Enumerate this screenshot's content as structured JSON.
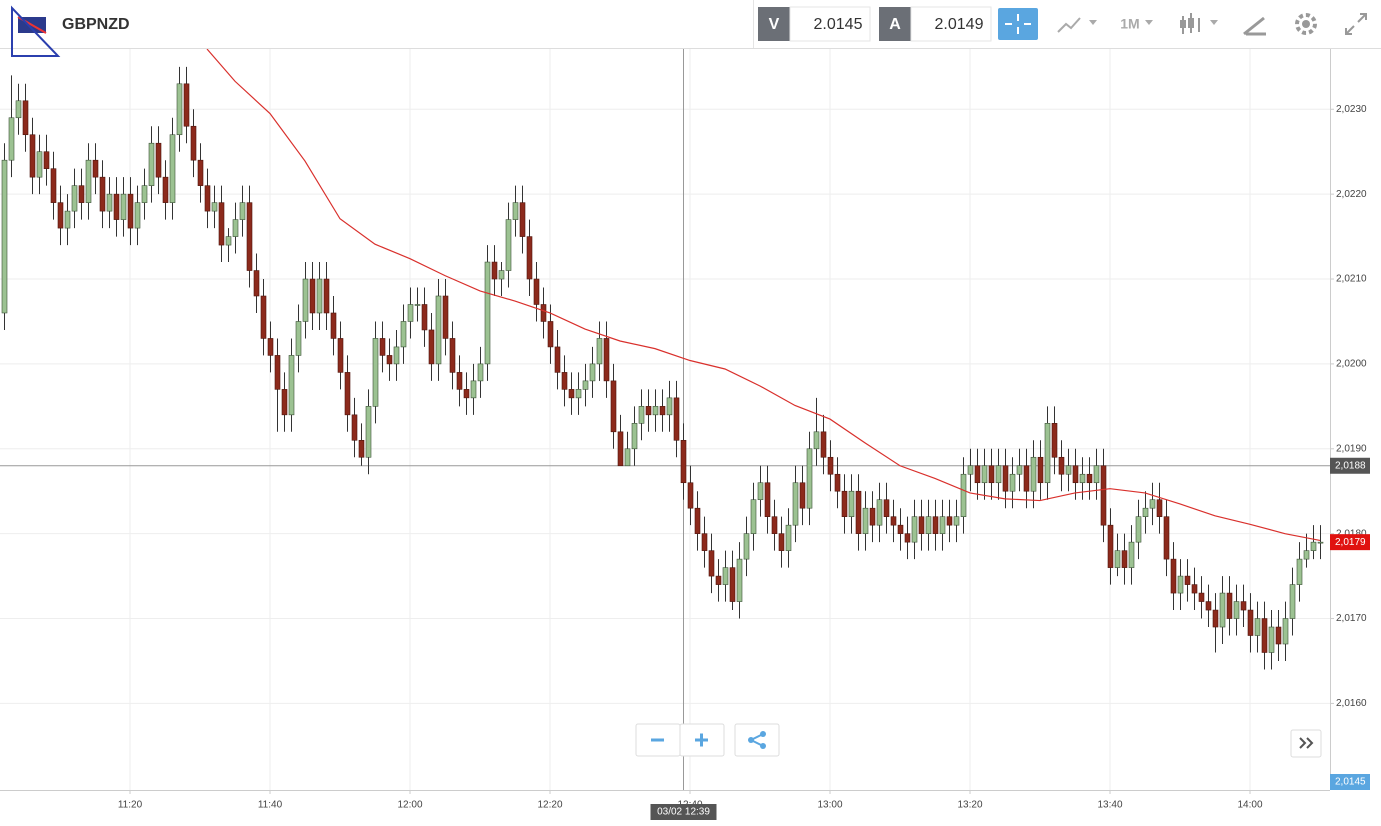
{
  "toolbar": {
    "symbol": "GBPNZD",
    "sell_label": "V",
    "sell_price": 2.0145,
    "buy_label": "A",
    "buy_price": 2.0149,
    "interval": "1M"
  },
  "chart_data": {
    "type": "candlestick",
    "x": [
      "11:02",
      "11:03",
      "11:04",
      "11:05",
      "11:06",
      "11:07",
      "11:08",
      "11:09",
      "11:10",
      "11:11",
      "11:12",
      "11:13",
      "11:14",
      "11:15",
      "11:16",
      "11:17",
      "11:18",
      "11:19",
      "11:20",
      "11:21",
      "11:22",
      "11:23",
      "11:24",
      "11:25",
      "11:26",
      "11:27",
      "11:28",
      "11:29",
      "11:30",
      "11:31",
      "11:32",
      "11:33",
      "11:34",
      "11:35",
      "11:36",
      "11:37",
      "11:38",
      "11:39",
      "11:40",
      "11:41",
      "11:42",
      "11:43",
      "11:44",
      "11:45",
      "11:46",
      "11:47",
      "11:48",
      "11:49",
      "11:50",
      "11:51",
      "11:52",
      "11:53",
      "11:54",
      "11:55",
      "11:56",
      "11:57",
      "11:58",
      "11:59",
      "12:00",
      "12:01",
      "12:02",
      "12:03",
      "12:04",
      "12:05",
      "12:06",
      "12:07",
      "12:08",
      "12:09",
      "12:10",
      "12:11",
      "12:12",
      "12:13",
      "12:14",
      "12:15",
      "12:16",
      "12:17",
      "12:18",
      "12:19",
      "12:20",
      "12:21",
      "12:22",
      "12:23",
      "12:24",
      "12:25",
      "12:26",
      "12:27",
      "12:28",
      "12:29",
      "12:30",
      "12:31",
      "12:32",
      "12:33",
      "12:34",
      "12:35",
      "12:36",
      "12:37",
      "12:38",
      "12:39",
      "12:40",
      "12:41",
      "12:42",
      "12:43",
      "12:44",
      "12:45",
      "12:46",
      "12:47",
      "12:48",
      "12:49",
      "12:50",
      "12:51",
      "12:52",
      "12:53",
      "12:54",
      "12:55",
      "12:56",
      "12:57",
      "12:58",
      "12:59",
      "13:00",
      "13:01",
      "13:02",
      "13:03",
      "13:04",
      "13:05",
      "13:06",
      "13:07",
      "13:08",
      "13:09",
      "13:10",
      "13:11",
      "13:12",
      "13:13",
      "13:14",
      "13:15",
      "13:16",
      "13:17",
      "13:18",
      "13:19",
      "13:20",
      "13:21",
      "13:22",
      "13:23",
      "13:24",
      "13:25",
      "13:26",
      "13:27",
      "13:28",
      "13:29",
      "13:30",
      "13:31",
      "13:32",
      "13:33",
      "13:34",
      "13:35",
      "13:36",
      "13:37",
      "13:38",
      "13:39",
      "13:40",
      "13:41",
      "13:42",
      "13:43",
      "13:44",
      "13:45",
      "13:46",
      "13:47",
      "13:48",
      "13:49",
      "13:50",
      "13:51",
      "13:52",
      "13:53",
      "13:54",
      "13:55",
      "13:56",
      "13:57",
      "13:58",
      "13:59",
      "14:00",
      "14:01",
      "14:02",
      "14:03",
      "14:04",
      "14:05",
      "14:06",
      "14:07",
      "14:08",
      "14:09",
      "14:10"
    ],
    "open": [
      2.0206,
      2.0224,
      2.0229,
      2.0231,
      2.0227,
      2.0222,
      2.0225,
      2.0223,
      2.0219,
      2.0216,
      2.0218,
      2.0221,
      2.0219,
      2.0224,
      2.0222,
      2.0218,
      2.022,
      2.0217,
      2.022,
      2.0216,
      2.0219,
      2.0221,
      2.0226,
      2.0222,
      2.0219,
      2.0227,
      2.0233,
      2.0228,
      2.0224,
      2.0221,
      2.0218,
      2.0219,
      2.0214,
      2.0215,
      2.0217,
      2.0219,
      2.0211,
      2.0208,
      2.0203,
      2.0201,
      2.0197,
      2.0194,
      2.0201,
      2.0205,
      2.021,
      2.0206,
      2.021,
      2.0206,
      2.0203,
      2.0199,
      2.0194,
      2.0191,
      2.0189,
      2.0195,
      2.0203,
      2.0201,
      2.02,
      2.0202,
      2.0205,
      2.0207,
      2.0207,
      2.0204,
      2.02,
      2.0208,
      2.0203,
      2.0199,
      2.0197,
      2.0196,
      2.0198,
      2.02,
      2.0212,
      2.021,
      2.0211,
      2.0217,
      2.0219,
      2.0215,
      2.021,
      2.0207,
      2.0205,
      2.0202,
      2.0199,
      2.0197,
      2.0196,
      2.0197,
      2.0198,
      2.02,
      2.0203,
      2.0198,
      2.0192,
      2.0188,
      2.019,
      2.0193,
      2.0195,
      2.0194,
      2.0195,
      2.0194,
      2.0196,
      2.0191,
      2.0186,
      2.0183,
      2.018,
      2.0178,
      2.0175,
      2.0174,
      2.0176,
      2.0172,
      2.0177,
      2.018,
      2.0184,
      2.0186,
      2.0182,
      2.018,
      2.0178,
      2.0181,
      2.0186,
      2.0183,
      2.019,
      2.0192,
      2.0189,
      2.0187,
      2.0185,
      2.0182,
      2.0185,
      2.018,
      2.0183,
      2.0181,
      2.0184,
      2.0182,
      2.0181,
      2.018,
      2.0179,
      2.0182,
      2.018,
      2.0182,
      2.018,
      2.0182,
      2.0181,
      2.0182,
      2.0187,
      2.0188,
      2.0186,
      2.0188,
      2.0186,
      2.0188,
      2.0185,
      2.0187,
      2.0188,
      2.0185,
      2.0189,
      2.0186,
      2.0193,
      2.0189,
      2.0187,
      2.0188,
      2.0186,
      2.0187,
      2.0186,
      2.0188,
      2.0181,
      2.0176,
      2.0178,
      2.0176,
      2.0179,
      2.0182,
      2.0183,
      2.0184,
      2.0182,
      2.0177,
      2.0173,
      2.0175,
      2.0174,
      2.0173,
      2.0172,
      2.0171,
      2.0169,
      2.0173,
      2.017,
      2.0172,
      2.0171,
      2.0168,
      2.017,
      2.0166,
      2.0169,
      2.0167,
      2.017,
      2.0174,
      2.0177,
      2.0178,
      2.0179
    ],
    "high": [
      2.0226,
      2.0234,
      2.0233,
      2.0233,
      2.0229,
      2.0227,
      2.0227,
      2.0225,
      2.0221,
      2.022,
      2.0223,
      2.0223,
      2.0226,
      2.0226,
      2.0224,
      2.0222,
      2.0222,
      2.0222,
      2.0222,
      2.0221,
      2.0223,
      2.0228,
      2.0228,
      2.0224,
      2.0229,
      2.0235,
      2.0235,
      2.023,
      2.0226,
      2.0223,
      2.0221,
      2.0221,
      2.0216,
      2.0219,
      2.0221,
      2.0221,
      2.0213,
      2.021,
      2.0205,
      2.0203,
      2.0199,
      2.0203,
      2.0207,
      2.0212,
      2.0212,
      2.0212,
      2.0212,
      2.0208,
      2.0205,
      2.0201,
      2.0196,
      2.0193,
      2.0197,
      2.0205,
      2.0205,
      2.0203,
      2.0204,
      2.0207,
      2.0209,
      2.0209,
      2.0209,
      2.0206,
      2.021,
      2.021,
      2.0205,
      2.0201,
      2.0199,
      2.02,
      2.0202,
      2.0214,
      2.0214,
      2.0212,
      2.0219,
      2.0221,
      2.0221,
      2.0217,
      2.0212,
      2.0209,
      2.0207,
      2.0204,
      2.0201,
      2.0199,
      2.0199,
      2.02,
      2.0202,
      2.0205,
      2.0205,
      2.02,
      2.0194,
      2.0192,
      2.0195,
      2.0197,
      2.0197,
      2.0197,
      2.0197,
      2.0198,
      2.0198,
      2.0193,
      2.0188,
      2.0185,
      2.0182,
      2.018,
      2.0177,
      2.0178,
      2.0178,
      2.0179,
      2.0182,
      2.0186,
      2.0188,
      2.0188,
      2.0184,
      2.0182,
      2.0183,
      2.0188,
      2.0188,
      2.0192,
      2.0196,
      2.0194,
      2.0191,
      2.0189,
      2.0187,
      2.0187,
      2.0187,
      2.0185,
      2.0185,
      2.0186,
      2.0186,
      2.0184,
      2.0183,
      2.0182,
      2.0184,
      2.0184,
      2.0184,
      2.0184,
      2.0184,
      2.0184,
      2.0184,
      2.0189,
      2.019,
      2.019,
      2.019,
      2.019,
      2.019,
      2.019,
      2.0189,
      2.019,
      2.019,
      2.0191,
      2.0191,
      2.0195,
      2.0195,
      2.0191,
      2.019,
      2.019,
      2.0189,
      2.0189,
      2.019,
      2.019,
      2.0183,
      2.018,
      2.018,
      2.0181,
      2.0184,
      2.0185,
      2.0186,
      2.0186,
      2.0184,
      2.0179,
      2.0177,
      2.0177,
      2.0176,
      2.0175,
      2.0174,
      2.0173,
      2.0175,
      2.0175,
      2.0174,
      2.0174,
      2.0173,
      2.0172,
      2.0172,
      2.0171,
      2.0171,
      2.0172,
      2.0176,
      2.0179,
      2.018,
      2.0181,
      2.0181
    ],
    "low": [
      2.0204,
      2.0222,
      2.0227,
      2.0225,
      2.022,
      2.022,
      2.0221,
      2.0217,
      2.0214,
      2.0214,
      2.0216,
      2.0217,
      2.0217,
      2.022,
      2.0216,
      2.0216,
      2.0215,
      2.0215,
      2.0214,
      2.0214,
      2.0217,
      2.0219,
      2.022,
      2.0217,
      2.0217,
      2.0225,
      2.0226,
      2.0222,
      2.0219,
      2.0216,
      2.0216,
      2.0212,
      2.0212,
      2.0213,
      2.0215,
      2.0209,
      2.0206,
      2.0201,
      2.0199,
      2.0192,
      2.0192,
      2.0192,
      2.0199,
      2.0203,
      2.0204,
      2.0204,
      2.0204,
      2.0201,
      2.0197,
      2.0192,
      2.0189,
      2.0188,
      2.0187,
      2.0193,
      2.0199,
      2.0198,
      2.0198,
      2.02,
      2.0203,
      2.0205,
      2.0202,
      2.0198,
      2.0198,
      2.0201,
      2.0197,
      2.0195,
      2.0194,
      2.0194,
      2.0196,
      2.0198,
      2.0208,
      2.0208,
      2.0209,
      2.0215,
      2.0213,
      2.0208,
      2.0205,
      2.0203,
      2.02,
      2.0197,
      2.0195,
      2.0194,
      2.0194,
      2.0195,
      2.0196,
      2.0198,
      2.0196,
      2.019,
      2.0188,
      2.0188,
      2.0188,
      2.0191,
      2.0192,
      2.0192,
      2.0192,
      2.0192,
      2.0189,
      2.0184,
      2.0181,
      2.0178,
      2.0176,
      2.0173,
      2.0172,
      2.0172,
      2.0171,
      2.017,
      2.0175,
      2.0178,
      2.0182,
      2.018,
      2.0178,
      2.0176,
      2.0176,
      2.0179,
      2.0181,
      2.0181,
      2.0188,
      2.0187,
      2.0185,
      2.0183,
      2.018,
      2.018,
      2.0178,
      2.0178,
      2.0179,
      2.0179,
      2.018,
      2.0179,
      2.0178,
      2.0177,
      2.0177,
      2.0178,
      2.0178,
      2.0178,
      2.0178,
      2.0179,
      2.0179,
      2.018,
      2.0185,
      2.0184,
      2.0184,
      2.0184,
      2.0184,
      2.0183,
      2.0183,
      2.0185,
      2.0183,
      2.0183,
      2.0184,
      2.0184,
      2.0187,
      2.0185,
      2.0185,
      2.0184,
      2.0184,
      2.0184,
      2.0184,
      2.0179,
      2.0174,
      2.0175,
      2.0174,
      2.0174,
      2.0177,
      2.018,
      2.0181,
      2.018,
      2.0175,
      2.0171,
      2.0171,
      2.0172,
      2.0171,
      2.017,
      2.0169,
      2.0166,
      2.0167,
      2.0168,
      2.0168,
      2.0169,
      2.0166,
      2.0166,
      2.0164,
      2.0164,
      2.0165,
      2.0165,
      2.0168,
      2.0172,
      2.0176,
      2.0177,
      2.0177
    ],
    "close": [
      2.0224,
      2.0229,
      2.0231,
      2.0227,
      2.0222,
      2.0225,
      2.0223,
      2.0219,
      2.0216,
      2.0218,
      2.0221,
      2.0219,
      2.0224,
      2.0222,
      2.0218,
      2.022,
      2.0217,
      2.022,
      2.0216,
      2.0219,
      2.0221,
      2.0226,
      2.0222,
      2.0219,
      2.0227,
      2.0233,
      2.0228,
      2.0224,
      2.0221,
      2.0218,
      2.0219,
      2.0214,
      2.0215,
      2.0217,
      2.0219,
      2.0211,
      2.0208,
      2.0203,
      2.0201,
      2.0197,
      2.0194,
      2.0201,
      2.0205,
      2.021,
      2.0206,
      2.021,
      2.0206,
      2.0203,
      2.0199,
      2.0194,
      2.0191,
      2.0189,
      2.0195,
      2.0203,
      2.0201,
      2.02,
      2.0202,
      2.0205,
      2.0207,
      2.0207,
      2.0204,
      2.02,
      2.0208,
      2.0203,
      2.0199,
      2.0197,
      2.0196,
      2.0198,
      2.02,
      2.0212,
      2.021,
      2.0211,
      2.0217,
      2.0219,
      2.0215,
      2.021,
      2.0207,
      2.0205,
      2.0202,
      2.0199,
      2.0197,
      2.0196,
      2.0197,
      2.0198,
      2.02,
      2.0203,
      2.0198,
      2.0192,
      2.0188,
      2.019,
      2.0193,
      2.0195,
      2.0194,
      2.0195,
      2.0194,
      2.0196,
      2.0191,
      2.0186,
      2.0183,
      2.018,
      2.0178,
      2.0175,
      2.0174,
      2.0176,
      2.0172,
      2.0177,
      2.018,
      2.0184,
      2.0186,
      2.0182,
      2.018,
      2.0178,
      2.0181,
      2.0186,
      2.0183,
      2.019,
      2.0192,
      2.0189,
      2.0187,
      2.0185,
      2.0182,
      2.0185,
      2.018,
      2.0183,
      2.0181,
      2.0184,
      2.0182,
      2.0181,
      2.018,
      2.0179,
      2.0182,
      2.018,
      2.0182,
      2.018,
      2.0182,
      2.0181,
      2.0182,
      2.0187,
      2.0188,
      2.0186,
      2.0188,
      2.0186,
      2.0188,
      2.0185,
      2.0187,
      2.0188,
      2.0185,
      2.0189,
      2.0186,
      2.0193,
      2.0189,
      2.0187,
      2.0188,
      2.0186,
      2.0187,
      2.0186,
      2.0188,
      2.0181,
      2.0176,
      2.0178,
      2.0176,
      2.0179,
      2.0182,
      2.0183,
      2.0184,
      2.0182,
      2.0177,
      2.0173,
      2.0175,
      2.0174,
      2.0173,
      2.0172,
      2.0171,
      2.0169,
      2.0173,
      2.017,
      2.0172,
      2.0171,
      2.0168,
      2.017,
      2.0166,
      2.0169,
      2.0167,
      2.017,
      2.0174,
      2.0177,
      2.0178,
      2.0179,
      2.0179
    ],
    "up_color": "#9cc292",
    "down_color": "#8c2a1c",
    "moving_average": {
      "color": "#d9302c",
      "x": [
        "11:31",
        "11:35",
        "11:40",
        "11:45",
        "11:50",
        "11:55",
        "12:00",
        "12:05",
        "12:10",
        "12:15",
        "12:20",
        "12:25",
        "12:30",
        "12:35",
        "12:40",
        "12:45",
        "12:50",
        "12:55",
        "13:00",
        "13:05",
        "13:10",
        "13:15",
        "13:20",
        "13:25",
        "13:30",
        "13:35",
        "13:40",
        "13:45",
        "13:50",
        "13:55",
        "14:00",
        "14:05",
        "14:10"
      ],
      "values": [
        2.02371,
        2.02333,
        2.02295,
        2.02239,
        2.02171,
        2.02141,
        2.02124,
        2.02104,
        2.02086,
        2.02074,
        2.0206,
        2.02041,
        2.02027,
        2.02018,
        2.02004,
        2.01994,
        2.01974,
        2.01951,
        2.01935,
        2.01907,
        2.0188,
        2.01865,
        2.01848,
        2.01841,
        2.01839,
        2.01848,
        2.01853,
        2.01848,
        2.01835,
        2.01821,
        2.01811,
        2.018,
        2.01792
      ]
    },
    "ylim": [
      2.01498,
      2.02371
    ],
    "yticks": [
      {
        "value": 2.016,
        "label": "2,0160"
      },
      {
        "value": 2.017,
        "label": "2,0170"
      },
      {
        "value": 2.018,
        "label": "2,0180"
      },
      {
        "value": 2.019,
        "label": "2,0190"
      },
      {
        "value": 2.02,
        "label": "2,0200"
      },
      {
        "value": 2.021,
        "label": "2,0210"
      },
      {
        "value": 2.022,
        "label": "2,0220"
      },
      {
        "value": 2.023,
        "label": "2,0230"
      }
    ],
    "xticks": [
      "11:20",
      "11:40",
      "12:00",
      "12:20",
      "12:40",
      "13:00",
      "13:20",
      "13:40",
      "14:00"
    ],
    "grid": true,
    "crosshair": {
      "x": "12:39",
      "x_label": "03/02 12:39",
      "y": {
        "value": 2.0188,
        "label": "2,0188"
      }
    },
    "last_price": {
      "value": 2.0179,
      "label": "2,0179"
    },
    "sell_marker": {
      "value": 2.0145,
      "label": "2,0145"
    }
  }
}
